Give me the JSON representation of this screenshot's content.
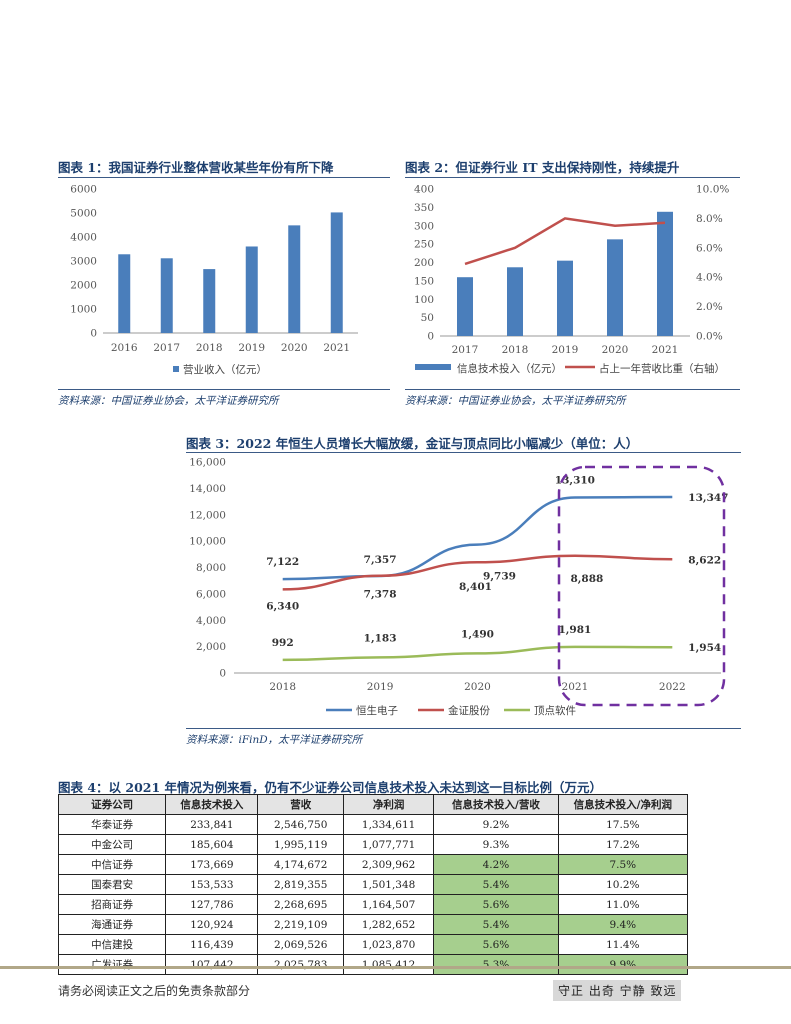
{
  "fig1": {
    "title": "图表 1：我国证券行业整体营收某些年份有所下降",
    "source": "资料来源：中国证券业协会，太平洋证券研究所"
  },
  "fig2": {
    "title": "图表 2：但证券行业 IT 支出保持刚性，持续提升",
    "source": "资料来源：中国证券业协会，太平洋证券研究所"
  },
  "fig3": {
    "title": "图表 3：2022 年恒生人员增长大幅放缓，金证与顶点同比小幅减少（单位：人）",
    "source": "资料来源：iFinD，太平洋证券研究所"
  },
  "fig4": {
    "title": "图表 4：以 2021 年情况为例来看，仍有不少证券公司信息技术投入未达到这一目标比例（万元）",
    "headers": [
      "证券公司",
      "信息技术投入",
      "营收",
      "净利润",
      "信息技术投入/营收",
      "信息技术投入/净利润"
    ],
    "rows": [
      {
        "company": "华泰证券",
        "it": "233,841",
        "revenue": "2,546,750",
        "profit": "1,334,611",
        "ratio_rev": "9.2%",
        "ratio_profit": "17.5%",
        "hl_rev": false,
        "hl_profit": false
      },
      {
        "company": "中金公司",
        "it": "185,604",
        "revenue": "1,995,119",
        "profit": "1,077,771",
        "ratio_rev": "9.3%",
        "ratio_profit": "17.2%",
        "hl_rev": false,
        "hl_profit": false
      },
      {
        "company": "中信证券",
        "it": "173,669",
        "revenue": "4,174,672",
        "profit": "2,309,962",
        "ratio_rev": "4.2%",
        "ratio_profit": "7.5%",
        "hl_rev": true,
        "hl_profit": true
      },
      {
        "company": "国泰君安",
        "it": "153,533",
        "revenue": "2,819,355",
        "profit": "1,501,348",
        "ratio_rev": "5.4%",
        "ratio_profit": "10.2%",
        "hl_rev": true,
        "hl_profit": false
      },
      {
        "company": "招商证券",
        "it": "127,786",
        "revenue": "2,268,695",
        "profit": "1,164,507",
        "ratio_rev": "5.6%",
        "ratio_profit": "11.0%",
        "hl_rev": true,
        "hl_profit": false
      },
      {
        "company": "海通证券",
        "it": "120,924",
        "revenue": "2,219,109",
        "profit": "1,282,652",
        "ratio_rev": "5.4%",
        "ratio_profit": "9.4%",
        "hl_rev": true,
        "hl_profit": true
      },
      {
        "company": "中信建投",
        "it": "116,439",
        "revenue": "2,069,526",
        "profit": "1,023,870",
        "ratio_rev": "5.6%",
        "ratio_profit": "11.4%",
        "hl_rev": true,
        "hl_profit": false
      },
      {
        "company": "广发证券",
        "it": "107,442",
        "revenue": "2,025,783",
        "profit": "1,085,412",
        "ratio_rev": "5.3%",
        "ratio_profit": "9.9%",
        "hl_rev": true,
        "hl_profit": true
      }
    ],
    "highlight_color": "#a6cf8e"
  },
  "footer": {
    "disclaimer": "请务必阅读正文之后的免责条款部分",
    "motto": "守正 出奇 宁静 致远"
  },
  "chart_data": [
    {
      "type": "bar",
      "categories": [
        "2016",
        "2017",
        "2018",
        "2019",
        "2020",
        "2021"
      ],
      "series": [
        {
          "name": "营业收入（亿元）",
          "values": [
            3280,
            3113,
            2663,
            3605,
            4485,
            5024
          ],
          "color": "#4a7ebb"
        }
      ],
      "ylim": [
        0,
        6000
      ],
      "yticks": [
        0,
        1000,
        2000,
        3000,
        4000,
        5000,
        6000
      ],
      "legend": "bottom"
    },
    {
      "type": "bar",
      "categories": [
        "2017",
        "2018",
        "2019",
        "2020",
        "2021"
      ],
      "series": [
        {
          "name": "信息技术投入（亿元）",
          "type": "bar",
          "axis": "left",
          "values": [
            160,
            187,
            205,
            263,
            338
          ],
          "color": "#4a7ebb"
        },
        {
          "name": "占上一年营收比重（右轴）",
          "type": "line",
          "axis": "right",
          "values": [
            4.9,
            6.0,
            8.0,
            7.5,
            7.7
          ],
          "color": "#c0504d"
        }
      ],
      "ylim": [
        0,
        400
      ],
      "yticks": [
        "0",
        "50",
        "100",
        "150",
        "200",
        "250",
        "300",
        "350",
        "400"
      ],
      "ylim_right": [
        0,
        10
      ],
      "yticks_right": [
        "0.0%",
        "2.0%",
        "4.0%",
        "6.0%",
        "8.0%",
        "10.0%"
      ],
      "legend": "bottom"
    },
    {
      "type": "line",
      "x": [
        "2018",
        "2019",
        "2020",
        "2021",
        "2022"
      ],
      "series": [
        {
          "name": "恒生电子",
          "values": [
            7122,
            7357,
            9739,
            13310,
            13347
          ],
          "color": "#4a7ebb"
        },
        {
          "name": "金证股份",
          "values": [
            6340,
            7378,
            8401,
            8888,
            8622
          ],
          "color": "#c0504d"
        },
        {
          "name": "顶点软件",
          "values": [
            992,
            1183,
            1490,
            1981,
            1954
          ],
          "color": "#9bbb59"
        }
      ],
      "ylim": [
        0,
        16000
      ],
      "yticks": [
        "0",
        "2,000",
        "4,000",
        "6,000",
        "8,000",
        "10,000",
        "12,000",
        "14,000",
        "16,000"
      ],
      "data_labels": {
        "恒生电子": [
          "7,122",
          "7,357",
          "9,739",
          "13,310",
          "13,347"
        ],
        "金证股份": [
          "6,340",
          "7,378",
          "8,401",
          "8,888",
          "8,622"
        ],
        "顶点软件": [
          "992",
          "1,183",
          "1,490",
          "1,981",
          "1,954"
        ]
      },
      "legend": "bottom",
      "highlight_box_color": "#7030a0"
    }
  ]
}
